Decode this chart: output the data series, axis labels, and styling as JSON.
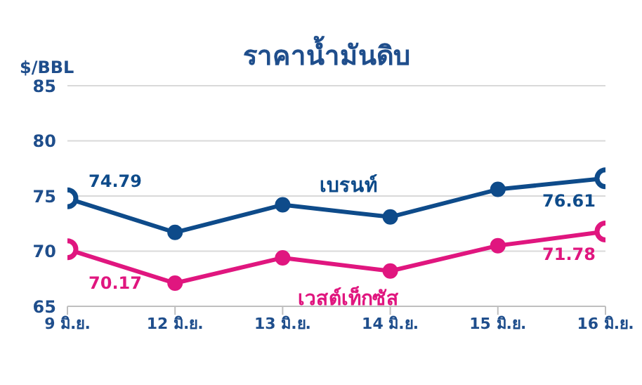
{
  "chart_data": {
    "type": "line",
    "title": "ราคาน้ำมันดิบ",
    "ylabel": "$/BBL",
    "categories": [
      "9 มิ.ย.",
      "12 มิ.ย.",
      "13 มิ.ย.",
      "14 มิ.ย.",
      "15 มิ.ย.",
      "16 มิ.ย."
    ],
    "series": [
      {
        "name": "เบรนท์",
        "color": "#0e4b8a",
        "values": [
          74.79,
          71.7,
          74.2,
          73.1,
          75.6,
          76.61
        ],
        "value_labels": [
          "74.79",
          null,
          null,
          null,
          null,
          "76.61"
        ]
      },
      {
        "name": "เวสต์เท็กซัส",
        "color": "#e0167f",
        "values": [
          70.17,
          67.1,
          69.4,
          68.2,
          70.5,
          71.78
        ],
        "value_labels": [
          "70.17",
          null,
          null,
          null,
          null,
          "71.78"
        ]
      }
    ],
    "ylim": [
      65,
      85
    ],
    "yticks": [
      65,
      70,
      75,
      80,
      85
    ],
    "grid": "y",
    "legend": false,
    "marker": "circle",
    "line_style": "solid"
  }
}
